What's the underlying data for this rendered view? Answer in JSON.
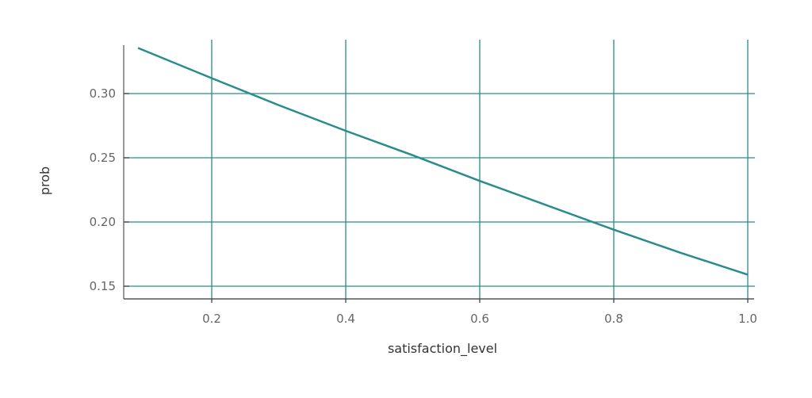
{
  "chart_data": {
    "type": "line",
    "title": "",
    "xlabel": "satisfaction_level",
    "ylabel": "prob",
    "xlim": [
      0.07,
      1.01
    ],
    "ylim": [
      0.142,
      0.34
    ],
    "x_ticks": [
      0.2,
      0.4,
      0.6,
      0.8,
      1.0
    ],
    "x_tick_labels": [
      "0.2",
      "0.4",
      "0.6",
      "0.8",
      "1.0"
    ],
    "y_ticks": [
      0.15,
      0.2,
      0.25,
      0.3
    ],
    "y_tick_labels": [
      "0.15",
      "0.20",
      "0.25",
      "0.30"
    ],
    "grid": true,
    "series": [
      {
        "x": [
          0.09,
          0.2,
          0.3,
          0.4,
          0.5,
          0.6,
          0.7,
          0.8,
          0.9,
          1.0
        ],
        "y": [
          0.3355,
          0.312,
          0.291,
          0.271,
          0.252,
          0.232,
          0.213,
          0.194,
          0.176,
          0.159
        ],
        "color": "#2a8c8c"
      }
    ],
    "colors": {
      "line": "#2a8c8c",
      "grid": "#2a8c8c",
      "axis": "#555555",
      "tick_text": "#666666"
    }
  }
}
